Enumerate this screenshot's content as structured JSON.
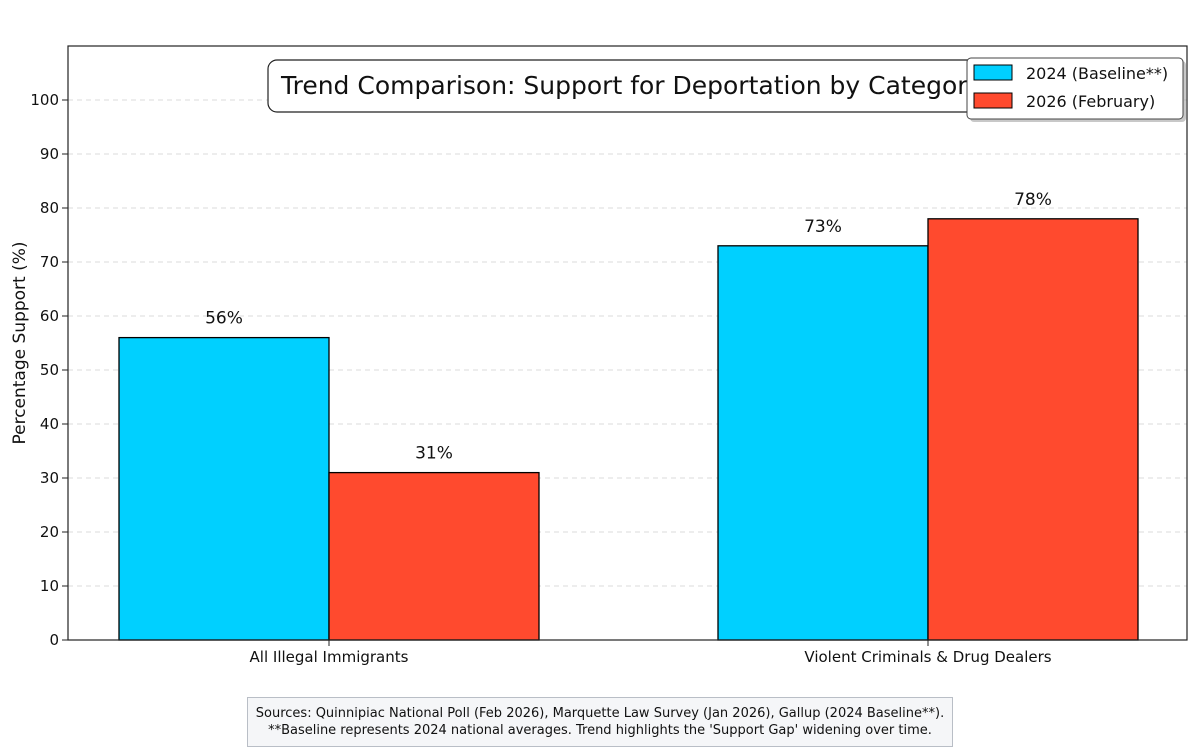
{
  "chart_data": {
    "type": "bar",
    "title": "Trend Comparison: Support for Deportation by Category",
    "xlabel": "",
    "ylabel": "Percentage Support (%)",
    "ylim": [
      0,
      110
    ],
    "yticks": [
      0,
      10,
      20,
      30,
      40,
      50,
      60,
      70,
      80,
      90,
      100
    ],
    "grid": true,
    "legend_position": "top-right",
    "categories": [
      "All Illegal Immigrants",
      "Violent Criminals & Drug Dealers"
    ],
    "series": [
      {
        "name": "2024 (Baseline**)",
        "values": [
          56,
          73
        ],
        "labels": [
          "56%",
          "73%"
        ],
        "color": "#00d0ff"
      },
      {
        "name": "2026 (February)",
        "values": [
          31,
          78
        ],
        "labels": [
          "31%",
          "78%"
        ],
        "color": "#ff4a2e"
      }
    ]
  },
  "footnote": {
    "line1": "Sources: Quinnipiac National Poll (Feb 2026), Marquette Law Survey (Jan 2026), Gallup (2024 Baseline**).",
    "line2": "**Baseline represents 2024 national averages. Trend highlights the 'Support Gap' widening over time."
  }
}
